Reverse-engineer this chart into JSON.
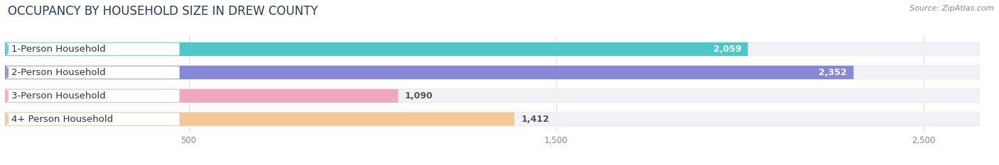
{
  "title": "OCCUPANCY BY HOUSEHOLD SIZE IN DREW COUNTY",
  "source": "Source: ZipAtlas.com",
  "categories": [
    "1-Person Household",
    "2-Person Household",
    "3-Person Household",
    "4+ Person Household"
  ],
  "values": [
    2059,
    2352,
    1090,
    1412
  ],
  "bar_colors": [
    "#4dc8c8",
    "#8888d8",
    "#f0a8c0",
    "#f5c898"
  ],
  "label_pill_colors": [
    "#5ad0c8",
    "#8888d8",
    "#f0a8c0",
    "#f5c898"
  ],
  "value_text_colors": [
    "#555555",
    "#555555",
    "#555555",
    "#555555"
  ],
  "xlim_max": 2700,
  "xticks": [
    500,
    1500,
    2500
  ],
  "bg_color": "#ffffff",
  "row_bg_color": "#f2f2f6",
  "title_fontsize": 12,
  "label_fontsize": 9.5,
  "value_fontsize": 9,
  "source_fontsize": 8,
  "figsize": [
    14.06,
    2.33
  ],
  "dpi": 100
}
